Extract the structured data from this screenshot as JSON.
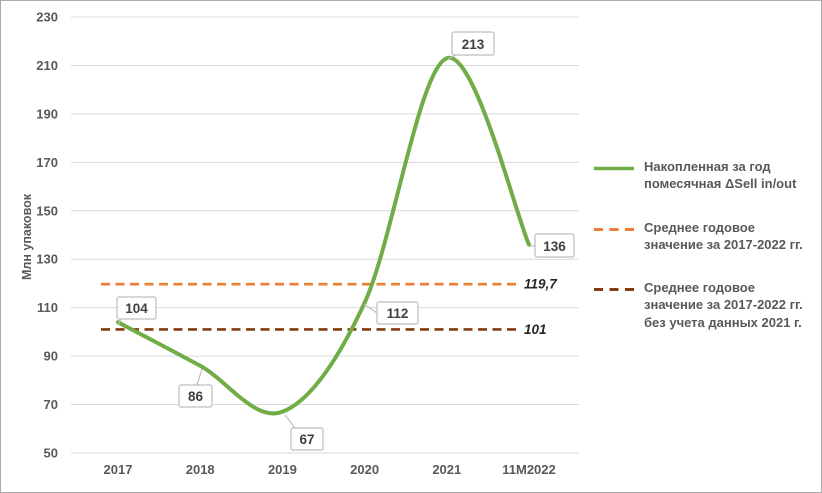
{
  "chart_data": {
    "type": "line",
    "title": "",
    "xlabel": "",
    "ylabel": "Млн упаковок",
    "categories": [
      "2017",
      "2018",
      "2019",
      "2020",
      "2021",
      "11M2022"
    ],
    "series": [
      {
        "name": "Накопленная за год помесячная ΔSell in/out",
        "values": [
          104,
          86,
          67,
          112,
          213,
          136
        ],
        "point_labels": [
          "104",
          "86",
          "67",
          "112",
          "213",
          "136"
        ],
        "color": "#70AD47",
        "style": "solid-smooth"
      }
    ],
    "ref_lines": [
      {
        "name": "Среднее годовое значение за 2017-2022 гг.",
        "value": 119.7,
        "label": "119,7",
        "color": "#ED7D31",
        "style": "dashed"
      },
      {
        "name": "Среднее годовое значение за 2017-2022 гг. без учета данных 2021 г.",
        "value": 101,
        "label": "101",
        "color": "#843C0C",
        "style": "dashed"
      }
    ],
    "ylim": [
      50,
      230
    ],
    "ytick_step": 20,
    "grid": true,
    "legend_position": "right",
    "colors": {
      "gridline": "#D9D9D9",
      "tick_text": "#595959",
      "data_label_text": "#404040",
      "callout_border": "#BFBFBF",
      "frame_border": "#ABABAB"
    }
  }
}
